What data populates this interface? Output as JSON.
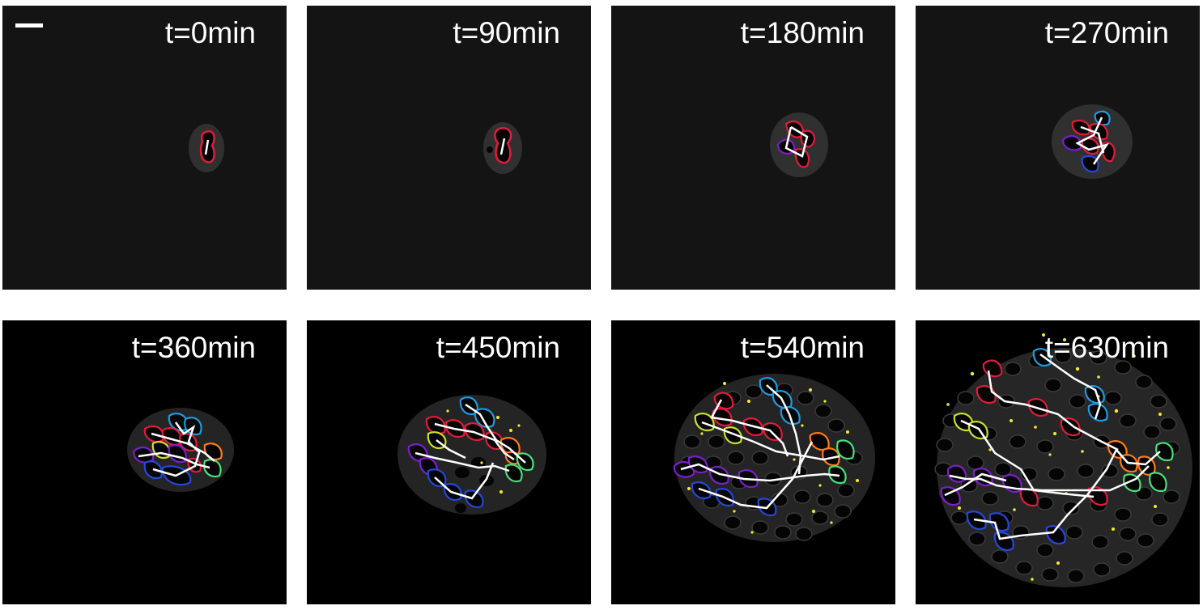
{
  "figure": {
    "panels": [
      {
        "label": "t=0min",
        "background": "#141414"
      },
      {
        "label": "t=90min",
        "background": "#141414"
      },
      {
        "label": "t=180min",
        "background": "#141414"
      },
      {
        "label": "t=270min",
        "background": "#141414"
      },
      {
        "label": "t=360min",
        "background": "#000000"
      },
      {
        "label": "t=450min",
        "background": "#000000"
      },
      {
        "label": "t=540min",
        "background": "#000000"
      },
      {
        "label": "t=630min",
        "background": "#000000"
      }
    ],
    "outline_colors": [
      "#e21b3c",
      "#7b1fc8",
      "#1e9be0",
      "#2448d8",
      "#c9e02a",
      "#ff7a1a",
      "#49e07a"
    ],
    "lineage_line_color": "#ffffff",
    "marker_color": "#f5ea2a"
  }
}
